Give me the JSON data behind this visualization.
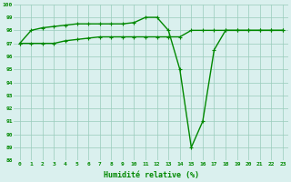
{
  "series1": [
    97,
    98,
    98.2,
    98.3,
    98.4,
    98.5,
    98.5,
    98.5,
    98.5,
    98.5,
    98.6,
    99,
    99,
    98,
    95,
    89,
    91,
    96.5,
    98,
    98,
    98,
    98,
    98,
    98
  ],
  "series2": [
    97,
    97,
    97,
    97,
    97.2,
    97.3,
    97.4,
    97.5,
    97.5,
    97.5,
    97.5,
    97.5,
    97.5,
    97.5,
    97.5,
    98,
    98,
    98,
    98,
    98,
    98,
    98,
    98,
    98
  ],
  "x": [
    0,
    1,
    2,
    3,
    4,
    5,
    6,
    7,
    8,
    9,
    10,
    11,
    12,
    13,
    14,
    15,
    16,
    17,
    18,
    19,
    20,
    21,
    22,
    23
  ],
  "ylim": [
    88,
    100
  ],
  "xlim": [
    -0.5,
    23.5
  ],
  "yticks": [
    88,
    89,
    90,
    91,
    92,
    93,
    94,
    95,
    96,
    97,
    98,
    99,
    100
  ],
  "xtick_labels": [
    "0",
    "1",
    "2",
    "3",
    "4",
    "5",
    "6",
    "7",
    "8",
    "9",
    "10",
    "11",
    "12",
    "13",
    "14",
    "15",
    "16",
    "17",
    "18",
    "19",
    "20",
    "21",
    "22",
    "23"
  ],
  "xlabel": "Humidité relative (%)",
  "line_color": "#008800",
  "bg_color": "#daf0ee",
  "grid_color": "#99ccbb",
  "text_color": "#008800",
  "line_width": 1.0,
  "marker_size": 2.5
}
